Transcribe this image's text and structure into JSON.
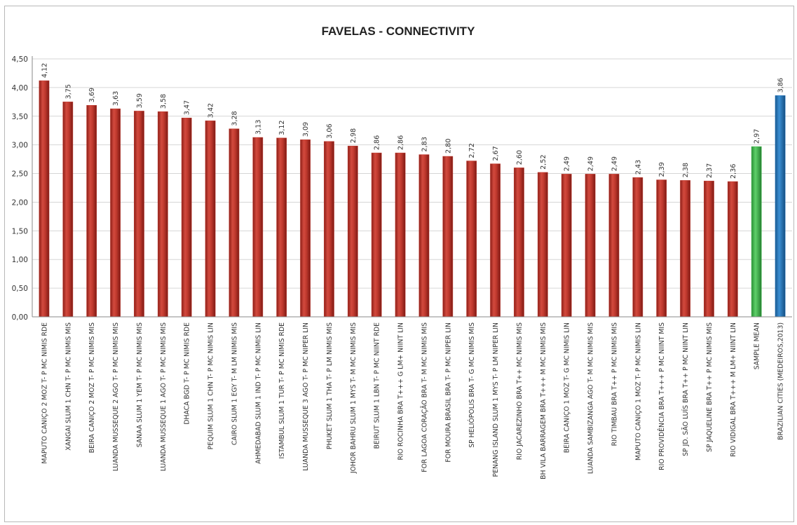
{
  "chart_data": {
    "type": "bar",
    "title": "FAVELAS - CONNECTIVITY",
    "ylim": [
      0,
      4.5
    ],
    "yticks": [
      "0,00",
      "0,50",
      "1,00",
      "1,50",
      "2,00",
      "2,50",
      "3,00",
      "3,50",
      "4,00",
      "4,50"
    ],
    "grid": true,
    "legend": "none",
    "categories": [
      "MAPUTO CANIÇO 2 MOZ T- P MC NIMIS RDE",
      "XANGAI SLUM 1 CHN T- P MC NIMIS MIS",
      "BEIRA CANIÇO 2 MOZ T- P MC NIMIS MIS",
      "LUANDA MUSSEQUE 2 AGO T- P MC NIMIS MIS",
      "SANAA SLUM 1 YEM T- P MC NIMIS MIS",
      "LUANDA MUSSEQUE 1 AGO T- P MC NIMIS MIS",
      "DHACA BGD T- P MC NIMIS RDE",
      "PEQUIM SLUM 1 CHN T- P MC NIMIS LIN",
      "CAIRO SLUM 1 EGY T- M LM NIMIS MIS",
      "AHMEDABAD SLUM 1 IND T- P MC NIMIS LIN",
      "ISTAMBUL SLUM 1 TUR T- P MC NIMIS RDE",
      "LUANDA MUSSEQUE 3 AGO T- P MC NIPER LIN",
      "PHUKET SLUM 1 THA T- P LM NIMIS MIS",
      "JOHOR BAHRU SLUM 1 MYS T- M MC NIMIS MIS",
      "BEIRUT SLUM 1 LBN T- P MC NIINT RDE",
      "RIO ROCINHA BRA T+++ G LM+ NIINT LIN",
      "FOR LAGOA CORAÇÃO BRA T- M MC NIMIS MIS",
      "FOR MOURA BRASIL BRA T- P MC NIPER LIN",
      "SP HELIÓPOLIS BRA T- G MC NIMIS MIS",
      "PENANG ISLAND SLUM 1 MYS T- P LM NIPER LIN",
      "RIO JACAREZINHO BRA T++ MC NIMIS MIS",
      "BH VILA BARRAGEM BRA T+++ M MC NIMIS MIS",
      "BEIRA CANIÇO 1 MOZ T- G MC NIMIS LIN",
      "LUANDA SAMBIZANGA AGO T- M MC NIMIS MIS",
      "RIO TIMBAU BRA T++ P MC NIMIS MIS",
      "MAPUTO CANIÇO 1 MOZ T- P MC NIMIS LIN",
      "RIO PROVIDÊNCIA BRA T+++ P MC NIINT MIS",
      "SP JD. SÃO LUÍS BRA T++ P MC NIINT LIN",
      "SP JAQUELINE BRA T++ P MC NIMIS MIS",
      "RIO VIDIGAL BRA T+++ M LM+ NIINT LIN",
      "SAMPLE MEAN",
      "BRAZILIAN CITIES (MEDEIROS,2013)"
    ],
    "values": [
      4.12,
      3.75,
      3.69,
      3.63,
      3.59,
      3.58,
      3.47,
      3.42,
      3.28,
      3.13,
      3.12,
      3.09,
      3.06,
      2.98,
      2.86,
      2.86,
      2.83,
      2.8,
      2.72,
      2.67,
      2.6,
      2.52,
      2.49,
      2.49,
      2.49,
      2.43,
      2.39,
      2.38,
      2.37,
      2.36,
      2.97,
      3.86
    ],
    "value_labels": [
      "4,12",
      "3,75",
      "3,69",
      "3,63",
      "3,59",
      "3,58",
      "3,47",
      "3,42",
      "3,28",
      "3,13",
      "3,12",
      "3,09",
      "3,06",
      "2,98",
      "2,86",
      "2,86",
      "2,83",
      "2,80",
      "2,72",
      "2,67",
      "2,60",
      "2,52",
      "2,49",
      "2,49",
      "2,49",
      "2,43",
      "2,39",
      "2,38",
      "2,37",
      "2,36",
      "2,97",
      "3,86"
    ],
    "colors": {
      "default": "#c0392e",
      "sample_mean": "#3cb54a",
      "brazilian_cities": "#2472b8"
    },
    "bar_color_keys": [
      "default",
      "default",
      "default",
      "default",
      "default",
      "default",
      "default",
      "default",
      "default",
      "default",
      "default",
      "default",
      "default",
      "default",
      "default",
      "default",
      "default",
      "default",
      "default",
      "default",
      "default",
      "default",
      "default",
      "default",
      "default",
      "default",
      "default",
      "default",
      "default",
      "default",
      "sample_mean",
      "brazilian_cities"
    ]
  }
}
